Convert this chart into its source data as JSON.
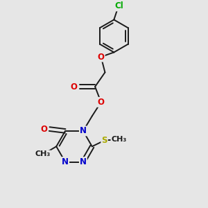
{
  "background_color": "#e6e6e6",
  "bond_color": "#1a1a1a",
  "atom_colors": {
    "O": "#dd0000",
    "N": "#0000cc",
    "S": "#aaaa00",
    "Cl": "#00aa00",
    "C": "#1a1a1a"
  },
  "font_size": 8.5,
  "figsize": [
    3.0,
    3.0
  ],
  "dpi": 100
}
